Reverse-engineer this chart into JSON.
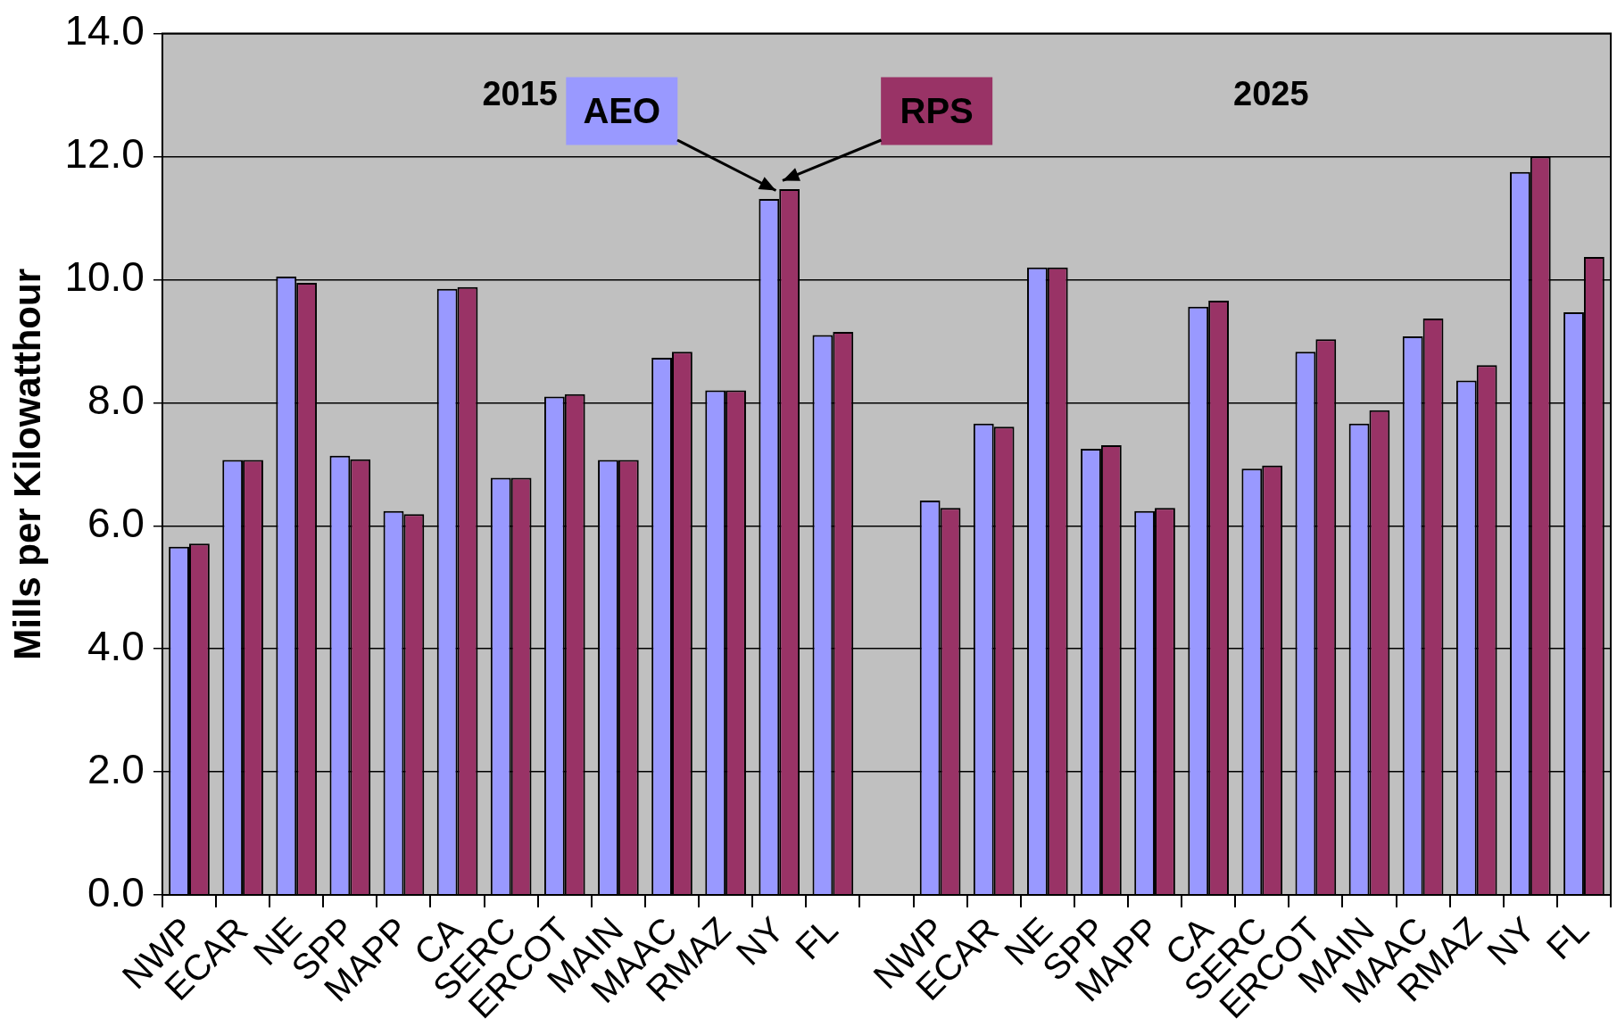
{
  "chart_data": {
    "type": "bar",
    "ylabel": "Mills per Kilowatthour",
    "categories": [
      "NWP",
      "ECAR",
      "NE",
      "SPP",
      "MAPP",
      "CA",
      "SERC",
      "ERCOT",
      "MAIN",
      "MAAC",
      "RMAZ",
      "NY",
      "FL",
      null,
      "NWP",
      "ECAR",
      "NE",
      "SPP",
      "MAPP",
      "CA",
      "SERC",
      "ERCOT",
      "MAIN",
      "MAAC",
      "RMAZ",
      "NY",
      "FL"
    ],
    "series": [
      {
        "name": "AEO",
        "color": "#9999ff",
        "values": [
          5.66,
          7.07,
          10.05,
          7.14,
          6.24,
          9.85,
          6.78,
          8.1,
          7.07,
          8.73,
          8.2,
          11.31,
          9.1,
          null,
          6.41,
          7.66,
          10.2,
          7.25,
          6.24,
          9.56,
          6.93,
          8.83,
          7.66,
          9.08,
          8.36,
          11.75,
          9.47
        ]
      },
      {
        "name": "RPS",
        "color": "#993366",
        "values": [
          5.71,
          7.07,
          9.95,
          7.08,
          6.19,
          9.88,
          6.78,
          8.14,
          7.07,
          8.83,
          8.2,
          11.47,
          9.15,
          null,
          6.29,
          7.61,
          10.2,
          7.31,
          6.29,
          9.66,
          6.98,
          9.03,
          7.88,
          9.37,
          8.61,
          12.0,
          10.37
        ]
      }
    ],
    "annotations": [
      "2015",
      "2025"
    ],
    "ylim": [
      0,
      14
    ],
    "yticks": [
      {
        "value": 0,
        "label": "0.0"
      },
      {
        "value": 2,
        "label": "2.0"
      },
      {
        "value": 4,
        "label": "4.0"
      },
      {
        "value": 6,
        "label": "6.0"
      },
      {
        "value": 8,
        "label": "8.0"
      },
      {
        "value": 10,
        "label": "10.0"
      },
      {
        "value": 12,
        "label": "12.0"
      },
      {
        "value": 14,
        "label": "14.0"
      }
    ],
    "grid": "y",
    "legend": false
  }
}
